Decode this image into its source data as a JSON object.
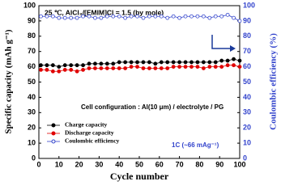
{
  "chart_data": {
    "type": "line",
    "title": "25 ℃, AlCl₃/[EMIM]Cl = 1.5 (by mole)",
    "xlabel": "Cycle number",
    "ylabel": "Specific capacity (mAh g⁻¹)",
    "y2label": "Coulombic efficiency (%)",
    "annotations": [
      "Cell configuration : Al(10 μm) / electrolyte / PG",
      "1C (~66 mAg⁻¹)"
    ],
    "x": [
      1,
      4,
      7,
      10,
      13,
      16,
      19,
      22,
      25,
      28,
      31,
      34,
      37,
      40,
      43,
      46,
      49,
      52,
      55,
      58,
      61,
      64,
      67,
      70,
      73,
      76,
      79,
      82,
      85,
      88,
      91,
      94,
      97,
      100
    ],
    "series": [
      {
        "name": "Charge capacity",
        "color": "#000000",
        "marker": "filled",
        "values": [
          61,
          61,
          61,
          60,
          61,
          61,
          61,
          61,
          62,
          62,
          62,
          62,
          62,
          63,
          63,
          63,
          63,
          63,
          63,
          62,
          63,
          63,
          63,
          63,
          63,
          63,
          63,
          63,
          63,
          63,
          64,
          64,
          65,
          64
        ]
      },
      {
        "name": "Discharge capacity",
        "color": "#e00000",
        "marker": "filled",
        "values": [
          58,
          58,
          57,
          57,
          58,
          58,
          57,
          58,
          59,
          59,
          59,
          59,
          59,
          59,
          59,
          60,
          60,
          59,
          59,
          59,
          59,
          59,
          60,
          60,
          60,
          60,
          60,
          59,
          60,
          60,
          60,
          61,
          61,
          60
        ]
      },
      {
        "name": "Coulombic efficiency",
        "color": "#3344cc",
        "marker": "open",
        "axis": "y2",
        "values": [
          93,
          93,
          93,
          92,
          92,
          92,
          92,
          93,
          93,
          92,
          92,
          93,
          93,
          93,
          92,
          93,
          93,
          92,
          93,
          93,
          93,
          92,
          93,
          92,
          93,
          93,
          93,
          93,
          92,
          93,
          93,
          94,
          92,
          90
        ]
      }
    ],
    "xlim": [
      0,
      100
    ],
    "xticks": [
      0,
      10,
      20,
      30,
      40,
      50,
      60,
      70,
      80,
      90,
      100
    ],
    "ylim": [
      0,
      100
    ],
    "yticks": [
      0,
      10,
      20,
      30,
      40,
      50,
      60,
      70,
      80,
      90,
      100
    ],
    "y2lim": [
      0,
      100
    ],
    "y2ticks": [
      0,
      10,
      20,
      30,
      40,
      50,
      60,
      70,
      80,
      90,
      100
    ],
    "y2color": "#3344cc",
    "legend": "lower left"
  }
}
